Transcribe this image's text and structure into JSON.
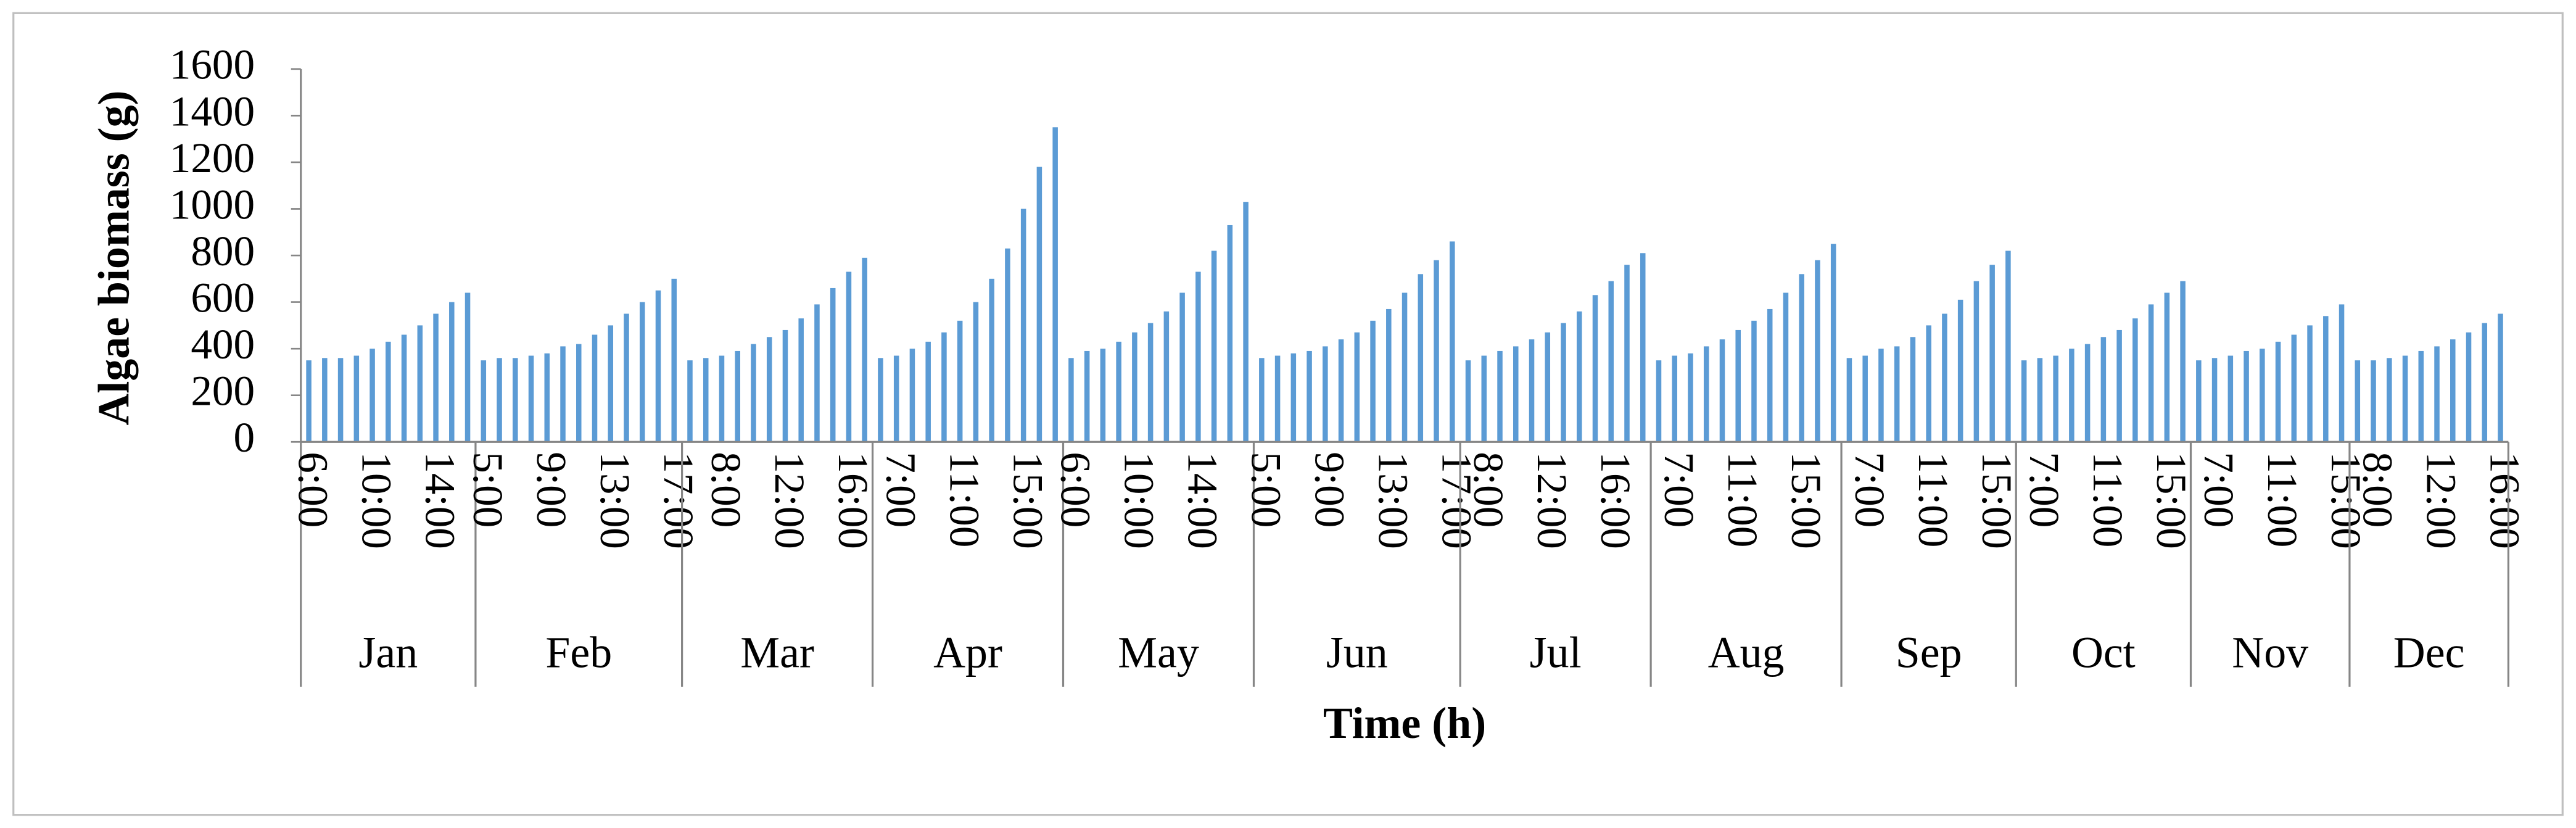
{
  "chart_data": {
    "type": "bar",
    "y_label": "Algae biomass (g)",
    "x_label": "Time (h)",
    "color": "#5b9bd5",
    "ylim": [
      0,
      1600
    ],
    "yticks": [
      0,
      200,
      400,
      600,
      800,
      1000,
      1200,
      1400,
      1600
    ],
    "grid": false,
    "groups": [
      {
        "name": "Jan",
        "categories": [
          "6:00",
          null,
          null,
          null,
          "10:00",
          null,
          null,
          null,
          "14:00",
          null,
          null
        ],
        "values": [
          350,
          360,
          360,
          370,
          400,
          430,
          460,
          500,
          550,
          600,
          640
        ]
      },
      {
        "name": "Feb",
        "categories": [
          "5:00",
          null,
          null,
          null,
          "9:00",
          null,
          null,
          null,
          "13:00",
          null,
          null,
          null,
          "17:00"
        ],
        "values": [
          350,
          360,
          360,
          370,
          380,
          410,
          420,
          460,
          500,
          550,
          600,
          650,
          700
        ]
      },
      {
        "name": "Mar",
        "categories": [
          null,
          null,
          "8:00",
          null,
          null,
          null,
          "12:00",
          null,
          null,
          null,
          "16:00",
          null
        ],
        "values": [
          350,
          360,
          370,
          390,
          420,
          450,
          480,
          530,
          590,
          660,
          730,
          790
        ]
      },
      {
        "name": "Apr",
        "categories": [
          null,
          "7:00",
          null,
          null,
          null,
          "11:00",
          null,
          null,
          null,
          "15:00",
          null,
          null
        ],
        "values": [
          360,
          370,
          400,
          430,
          470,
          520,
          600,
          700,
          830,
          1000,
          1180,
          1350
        ]
      },
      {
        "name": "May",
        "categories": [
          "6:00",
          null,
          null,
          null,
          "10:00",
          null,
          null,
          null,
          "14:00",
          null,
          null,
          null
        ],
        "values": [
          360,
          390,
          400,
          430,
          470,
          510,
          560,
          640,
          730,
          820,
          930,
          1030
        ]
      },
      {
        "name": "Jun",
        "categories": [
          "5:00",
          null,
          null,
          null,
          "9:00",
          null,
          null,
          null,
          "13:00",
          null,
          null,
          null,
          "17:00"
        ],
        "values": [
          360,
          370,
          380,
          390,
          410,
          440,
          470,
          520,
          570,
          640,
          720,
          780,
          860
        ]
      },
      {
        "name": "Jul",
        "categories": [
          null,
          "8:00",
          null,
          null,
          null,
          "12:00",
          null,
          null,
          null,
          "16:00",
          null,
          null
        ],
        "values": [
          350,
          370,
          390,
          410,
          440,
          470,
          510,
          560,
          630,
          690,
          760,
          810
        ]
      },
      {
        "name": "Aug",
        "categories": [
          null,
          "7:00",
          null,
          null,
          null,
          "11:00",
          null,
          null,
          null,
          "15:00",
          null,
          null
        ],
        "values": [
          350,
          370,
          380,
          410,
          440,
          480,
          520,
          570,
          640,
          720,
          780,
          850
        ]
      },
      {
        "name": "Sep",
        "categories": [
          null,
          "7:00",
          null,
          null,
          null,
          "11:00",
          null,
          null,
          null,
          "15:00",
          null
        ],
        "values": [
          360,
          370,
          400,
          410,
          450,
          500,
          550,
          610,
          690,
          760,
          820
        ]
      },
      {
        "name": "Oct",
        "categories": [
          null,
          "7:00",
          null,
          null,
          null,
          "11:00",
          null,
          null,
          null,
          "15:00",
          null
        ],
        "values": [
          350,
          360,
          370,
          400,
          420,
          450,
          480,
          530,
          590,
          640,
          690
        ]
      },
      {
        "name": "Nov",
        "categories": [
          null,
          "7:00",
          null,
          null,
          null,
          "11:00",
          null,
          null,
          null,
          "15:00"
        ],
        "values": [
          350,
          360,
          370,
          390,
          400,
          430,
          460,
          500,
          540,
          590
        ]
      },
      {
        "name": "Dec",
        "categories": [
          null,
          "8:00",
          null,
          null,
          null,
          "12:00",
          null,
          null,
          null,
          "16:00"
        ],
        "values": [
          350,
          350,
          360,
          370,
          390,
          410,
          440,
          470,
          510,
          550
        ]
      }
    ]
  }
}
